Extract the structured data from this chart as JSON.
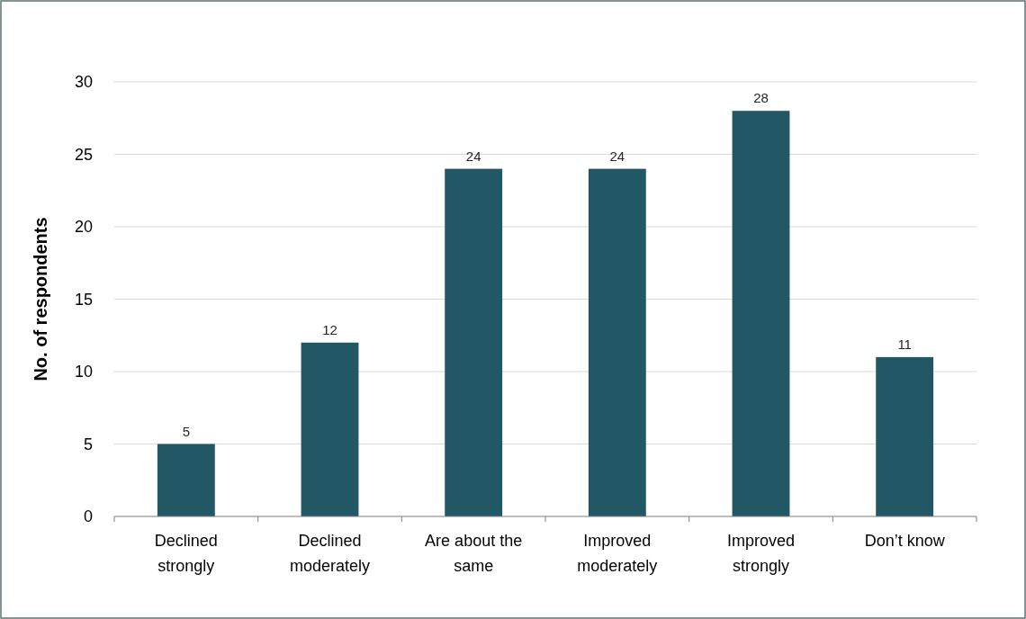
{
  "chart_data": {
    "type": "bar",
    "ylabel": "No. of respondents",
    "categories": [
      "Declined strongly",
      "Declined moderately",
      "Are about the same",
      "Improved moderately",
      "Improved strongly",
      "Don’t know"
    ],
    "values": [
      5,
      12,
      24,
      24,
      28,
      11
    ],
    "color": "#225866",
    "ylim": [
      0,
      30
    ],
    "yticks": [
      0,
      5,
      10,
      15,
      20,
      25,
      30
    ],
    "grid": "y",
    "data_labels": true
  }
}
